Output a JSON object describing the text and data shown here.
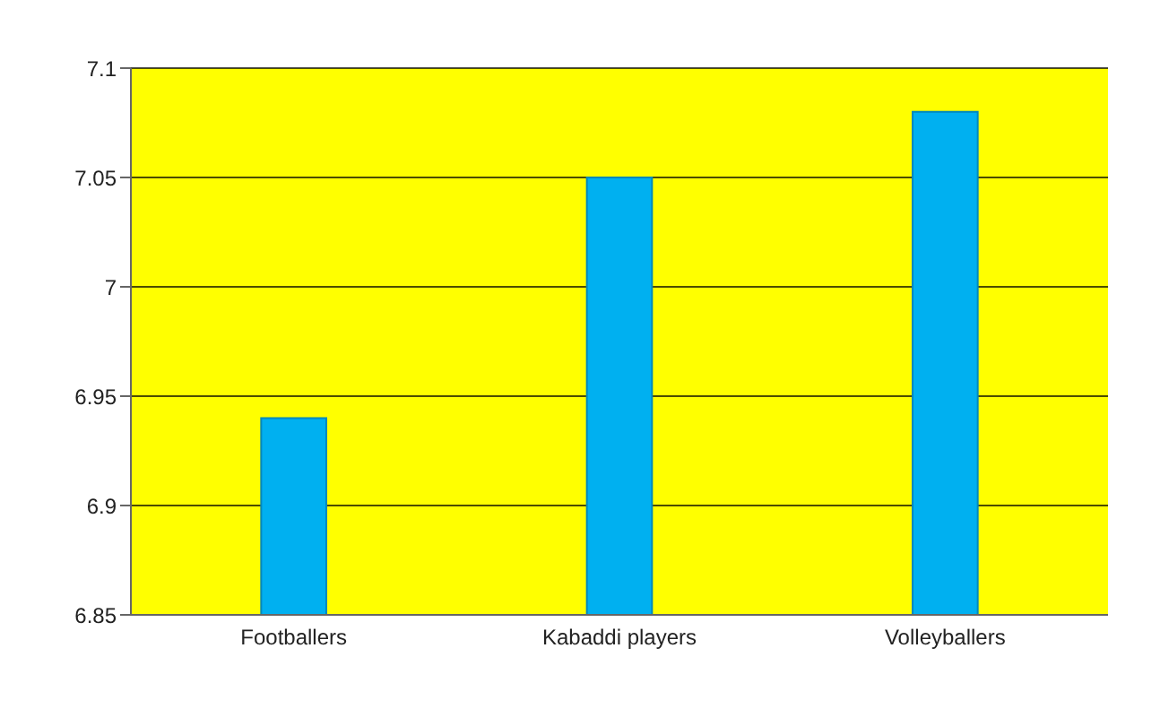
{
  "chart_data": {
    "type": "bar",
    "categories": [
      "Footballers",
      "Kabaddi players",
      "Volleyballers"
    ],
    "values": [
      6.94,
      7.05,
      7.08
    ],
    "color": "#00b0f0",
    "ylim": [
      6.85,
      7.1
    ],
    "yticks": [
      6.85,
      6.9,
      6.95,
      7,
      7.05,
      7.1
    ],
    "grid": "y"
  }
}
